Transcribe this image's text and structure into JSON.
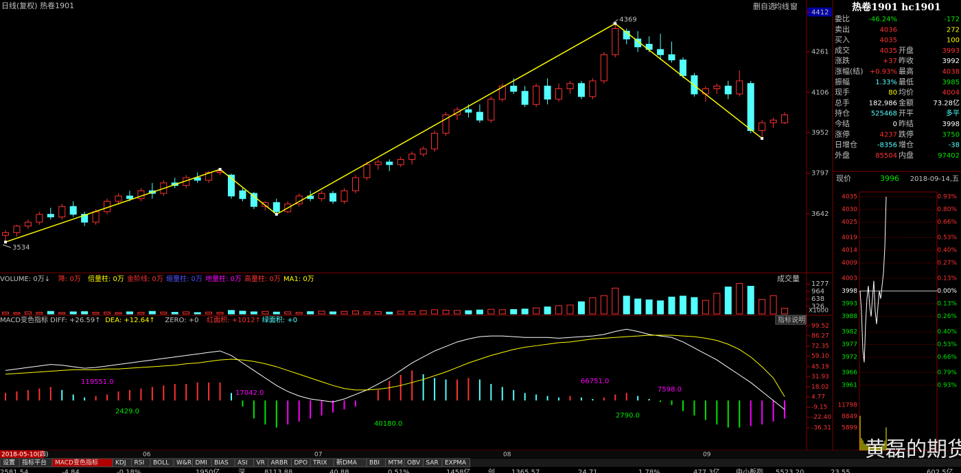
{
  "header": {
    "title": "日线(复权)  热卷1901",
    "buttons": [
      "删自选",
      "均线",
      "窗"
    ]
  },
  "kline": {
    "ylim": [
      3419,
      4459
    ],
    "yticks": [
      4412,
      4261,
      4106,
      3952,
      3797,
      3642
    ],
    "candles": [
      [
        3560,
        3580,
        3534,
        3570
      ],
      [
        3570,
        3600,
        3555,
        3595
      ],
      [
        3595,
        3620,
        3585,
        3610
      ],
      [
        3610,
        3650,
        3600,
        3640
      ],
      [
        3640,
        3665,
        3620,
        3630
      ],
      [
        3630,
        3680,
        3620,
        3670
      ],
      [
        3670,
        3690,
        3630,
        3640
      ],
      [
        3640,
        3650,
        3595,
        3610
      ],
      [
        3610,
        3660,
        3600,
        3650
      ],
      [
        3650,
        3700,
        3640,
        3690
      ],
      [
        3690,
        3720,
        3680,
        3710
      ],
      [
        3710,
        3730,
        3690,
        3700
      ],
      [
        3700,
        3740,
        3690,
        3730
      ],
      [
        3730,
        3760,
        3700,
        3720
      ],
      [
        3720,
        3770,
        3710,
        3760
      ],
      [
        3760,
        3780,
        3740,
        3750
      ],
      [
        3750,
        3790,
        3740,
        3780
      ],
      [
        3780,
        3800,
        3760,
        3770
      ],
      [
        3770,
        3805,
        3760,
        3800
      ],
      [
        3800,
        3812,
        3790,
        3805
      ],
      [
        3790,
        3795,
        3700,
        3710
      ],
      [
        3730,
        3740,
        3690,
        3700
      ],
      [
        3720,
        3725,
        3660,
        3670
      ],
      [
        3670,
        3690,
        3655,
        3685
      ],
      [
        3685,
        3700,
        3640,
        3650
      ],
      [
        3650,
        3690,
        3645,
        3680
      ],
      [
        3680,
        3720,
        3670,
        3710
      ],
      [
        3710,
        3730,
        3690,
        3700
      ],
      [
        3700,
        3730,
        3690,
        3720
      ],
      [
        3720,
        3730,
        3680,
        3690
      ],
      [
        3690,
        3740,
        3680,
        3730
      ],
      [
        3730,
        3790,
        3720,
        3780
      ],
      [
        3780,
        3840,
        3770,
        3830
      ],
      [
        3830,
        3850,
        3810,
        3840
      ],
      [
        3840,
        3850,
        3805,
        3830
      ],
      [
        3830,
        3860,
        3820,
        3850
      ],
      [
        3850,
        3880,
        3830,
        3870
      ],
      [
        3870,
        3900,
        3860,
        3890
      ],
      [
        3890,
        3960,
        3880,
        3950
      ],
      [
        3950,
        4030,
        3940,
        4020
      ],
      [
        4020,
        4050,
        4000,
        4040
      ],
      [
        4040,
        4060,
        4010,
        4030
      ],
      [
        4030,
        4060,
        3990,
        4000
      ],
      [
        4000,
        4090,
        3990,
        4080
      ],
      [
        4080,
        4140,
        4070,
        4130
      ],
      [
        4130,
        4160,
        4100,
        4110
      ],
      [
        4110,
        4130,
        4050,
        4060
      ],
      [
        4060,
        4140,
        4050,
        4130
      ],
      [
        4130,
        4160,
        4060,
        4080
      ],
      [
        4080,
        4140,
        4070,
        4120
      ],
      [
        4120,
        4150,
        4100,
        4140
      ],
      [
        4140,
        4150,
        4080,
        4090
      ],
      [
        4090,
        4160,
        4080,
        4150
      ],
      [
        4150,
        4260,
        4140,
        4250
      ],
      [
        4250,
        4369,
        4240,
        4350
      ],
      [
        4340,
        4350,
        4290,
        4310
      ],
      [
        4310,
        4340,
        4260,
        4280
      ],
      [
        4290,
        4320,
        4260,
        4270
      ],
      [
        4270,
        4330,
        4230,
        4250
      ],
      [
        4250,
        4300,
        4220,
        4230
      ],
      [
        4230,
        4240,
        4160,
        4170
      ],
      [
        4170,
        4180,
        4090,
        4100
      ],
      [
        4100,
        4130,
        4070,
        4120
      ],
      [
        4120,
        4140,
        4100,
        4130
      ],
      [
        4130,
        4150,
        4080,
        4100
      ],
      [
        4100,
        4190,
        4090,
        4150
      ],
      [
        4140,
        4150,
        3950,
        3960
      ],
      [
        3960,
        4000,
        3930,
        3990
      ],
      [
        3990,
        4010,
        3970,
        4000
      ],
      [
        3990,
        4030,
        3985,
        4020
      ]
    ],
    "zigzag": [
      [
        0,
        3534
      ],
      [
        19,
        3812
      ],
      [
        24,
        3640
      ],
      [
        54,
        4369
      ],
      [
        67,
        3930
      ]
    ],
    "up_color": "#ff3232",
    "down_color": "#54ffff",
    "zigzag_color": "#ffff00"
  },
  "volume": {
    "legend": [
      "VOLUME: 0万↓",
      "降: 0万",
      "倍量柱: 0万",
      "金阶线: 0万",
      "缩量柱: 0万",
      "地量柱: 0万",
      "高量柱: 0万",
      "MA1: 0万"
    ],
    "button": "成交量",
    "unit": "X1000",
    "ylim": [
      0,
      1400
    ],
    "yticks": [
      1277,
      964,
      638,
      326
    ],
    "values": [
      80,
      60,
      90,
      70,
      110,
      60,
      90,
      100,
      70,
      80,
      60,
      90,
      70,
      110,
      80,
      70,
      90,
      60,
      80,
      70,
      150,
      120,
      90,
      110,
      80,
      90,
      70,
      100,
      120,
      90,
      110,
      130,
      90,
      100,
      80,
      120,
      110,
      140,
      180,
      160,
      150,
      140,
      170,
      200,
      180,
      190,
      210,
      260,
      300,
      350,
      380,
      520,
      690,
      780,
      1100,
      760,
      640,
      600,
      560,
      720,
      760,
      700,
      580,
      880,
      1150,
      1300,
      1180,
      620,
      780,
      240
    ]
  },
  "macd": {
    "legend": [
      "MACD变色指标 DIFF: +26.59↑",
      "DEA: +12.64↑",
      "ZERO: +0",
      "红面积: +1012↑",
      "绿面积: +0"
    ],
    "button": "指标说明",
    "ylim": [
      -40,
      108
    ],
    "yticks": [
      99.52,
      {
        "value": 86.27,
        "label": "86.27"
      },
      {
        "value": 72.35,
        "label": "72.35"
      },
      {
        "value": 59.1,
        "label": "59.10"
      },
      {
        "value": 45.19,
        "label": "45.19"
      },
      {
        "value": 31.93,
        "label": "31.93"
      },
      {
        "value": 18.02,
        "label": "18.02"
      },
      {
        "value": 4.77,
        "label": "4.77"
      },
      {
        "value": -9.15,
        "label": "-9.15"
      },
      {
        "value": -22.4,
        "label": "-22.40"
      },
      {
        "value": -36.31,
        "label": "-36.31"
      }
    ],
    "diff": [
      40,
      42,
      44,
      46,
      48,
      47,
      45,
      43,
      44,
      46,
      48,
      50,
      52,
      54,
      56,
      58,
      60,
      62,
      64,
      66,
      60,
      50,
      40,
      30,
      20,
      12,
      6,
      2,
      0,
      -2,
      2,
      8,
      14,
      22,
      30,
      40,
      50,
      58,
      66,
      72,
      78,
      82,
      85,
      86,
      86,
      85,
      84,
      84,
      84,
      83,
      84,
      85,
      86,
      88,
      92,
      95,
      92,
      88,
      86,
      84,
      78,
      70,
      62,
      54,
      44,
      34,
      24,
      12,
      0,
      -12
    ],
    "dea": [
      35,
      36,
      37,
      38,
      39,
      40,
      41,
      41,
      41,
      42,
      42,
      43,
      44,
      45,
      46,
      47,
      49,
      50,
      52,
      54,
      55,
      54,
      52,
      49,
      45,
      40,
      35,
      30,
      25,
      20,
      16,
      14,
      14,
      15,
      17,
      20,
      24,
      28,
      33,
      38,
      44,
      50,
      55,
      60,
      64,
      68,
      71,
      73,
      75,
      77,
      78,
      80,
      82,
      83,
      84,
      85,
      86,
      87,
      87,
      87,
      86,
      85,
      83,
      80,
      75,
      68,
      58,
      45,
      30,
      5
    ],
    "hist": [
      10,
      12,
      14,
      16,
      18,
      14,
      8,
      4,
      6,
      8,
      12,
      14,
      16,
      18,
      20,
      22,
      22,
      24,
      24,
      24,
      10,
      -8,
      -24,
      -32,
      -36,
      -32,
      -28,
      -24,
      -20,
      -16,
      -12,
      -8,
      0,
      14,
      26,
      34,
      40,
      35,
      30,
      28,
      28,
      30,
      28,
      22,
      18,
      14,
      10,
      8,
      6,
      4,
      6,
      4,
      2,
      4,
      8,
      10,
      6,
      2,
      -2,
      -6,
      -14,
      -20,
      -26,
      -32,
      -36,
      -36,
      -34,
      -32,
      -28,
      -24
    ],
    "annotations": [
      "119551.0",
      "17042.0",
      "66751.0",
      "7598.0",
      "2429.0",
      "40180.0",
      "2790.0"
    ]
  },
  "dates": [
    "2018-05-10(四)",
    "06",
    "07",
    "08",
    "09"
  ],
  "tabs": [
    "设置",
    "指标平台",
    "MACD变色指标",
    "KDJ",
    "RSI",
    "BOLL",
    "W&R",
    "DMI",
    "BIAS",
    "ASI",
    "VR",
    "ARBR",
    "DPO",
    "TRIX",
    "新DMA",
    "BBI",
    "MTM",
    "OBV",
    "SAR",
    "EXPMA"
  ],
  "status": [
    "2581.54",
    "-4.84",
    "-0.18%",
    "1950亿",
    "深",
    "8113.88",
    "40.88",
    "0.51%",
    "1458亿",
    "创",
    "1365.57",
    "24.71",
    "1.78%",
    "477.3亿",
    "中小板指",
    "5523.20",
    "23.55",
    "602.5亿"
  ],
  "quote": {
    "title": "热卷1901 hc1901",
    "rows": [
      {
        "label": "委比",
        "value": "-46.24%",
        "color": "#00e600",
        "value2": "-172",
        "color2": "#00e600"
      },
      {
        "label": "卖出",
        "value": "4036",
        "color": "#ff3232",
        "value2": "272",
        "color2": "#ffff00"
      },
      {
        "label": "买入",
        "value": "4035",
        "color": "#ff3232",
        "value2": "100",
        "color2": "#ffff00"
      },
      {
        "label": "成交",
        "value": "4035",
        "color": "#ff3232",
        "label2": "开盘",
        "value2": "3993",
        "color2": "#ff3232"
      },
      {
        "label": "涨跌",
        "value": "+37",
        "color": "#ff3232",
        "label2": "昨收",
        "value2": "3992",
        "color2": "#ffffff"
      },
      {
        "label": "涨幅(结)",
        "value": "+0.93%",
        "color": "#ff3232",
        "label2": "最高",
        "value2": "4038",
        "color2": "#ff3232"
      },
      {
        "label": "振幅",
        "value": "1.33%",
        "color": "#54ffff",
        "label2": "最低",
        "value2": "3985",
        "color2": "#00e600"
      },
      {
        "label": "现手",
        "value": "80",
        "color": "#ffff00",
        "label2": "均价",
        "value2": "4004",
        "color2": "#ff3232"
      },
      {
        "label": "总手",
        "value": "182,986",
        "color": "#ffffff",
        "label2": "金额",
        "value2": "73.28亿",
        "color2": "#ffffff"
      },
      {
        "label": "持仓",
        "value": "525468",
        "color": "#54ffff",
        "label2": "开平",
        "value2": "多平",
        "color2": "#54ffff"
      },
      {
        "label": "今结",
        "value": "0",
        "color": "#ffffff",
        "label2": "昨结",
        "value2": "3998",
        "color2": "#ffffff"
      },
      {
        "label": "涨停",
        "value": "4237",
        "color": "#ff3232",
        "label2": "跌停",
        "value2": "3750",
        "color2": "#00e600"
      },
      {
        "label": "日增仓",
        "value": "-8356",
        "color": "#54ffff",
        "label2": "增仓",
        "value2": "-38",
        "color2": "#54ffff"
      },
      {
        "label": "外盘",
        "value": "85504",
        "color": "#ff3232",
        "label2": "内盘",
        "value2": "97402",
        "color2": "#00e600"
      }
    ],
    "price_label": "现价",
    "price": "3996",
    "date": "2018-09-14,五"
  },
  "intraday": {
    "ylim": [
      3961,
      4035
    ],
    "yticks": [
      4035,
      4030,
      4025,
      4019,
      4014,
      4009,
      4003,
      3998,
      3993,
      3988,
      3982,
      3977,
      3972,
      3966,
      3961
    ],
    "pct": [
      "0.93%",
      "0.80%",
      "0.66%",
      "0.53%",
      "0.40%",
      "0.27%",
      "0.13%",
      "0.00%",
      "0.13%",
      "0.26%",
      "0.40%",
      "0.53%",
      "0.66%",
      "0.79%",
      "0.93%"
    ],
    "values": [
      3998,
      3990,
      3975,
      3970,
      3985,
      3995,
      4000,
      3992,
      3988,
      3995,
      4002,
      3990,
      3985,
      3992,
      3998,
      3995,
      4000,
      4005,
      4015,
      4035
    ],
    "vol_ylim": [
      0,
      15000
    ],
    "vol_ticks": [
      11798,
      8849,
      5899
    ],
    "vol": [
      9000,
      3200,
      2600,
      1800,
      1500,
      1200,
      1400,
      1100,
      900,
      1000,
      1200,
      900,
      800,
      900,
      1100,
      1000,
      1200,
      1500,
      2500,
      6000
    ]
  },
  "watermark": "黄磊的期货人生"
}
